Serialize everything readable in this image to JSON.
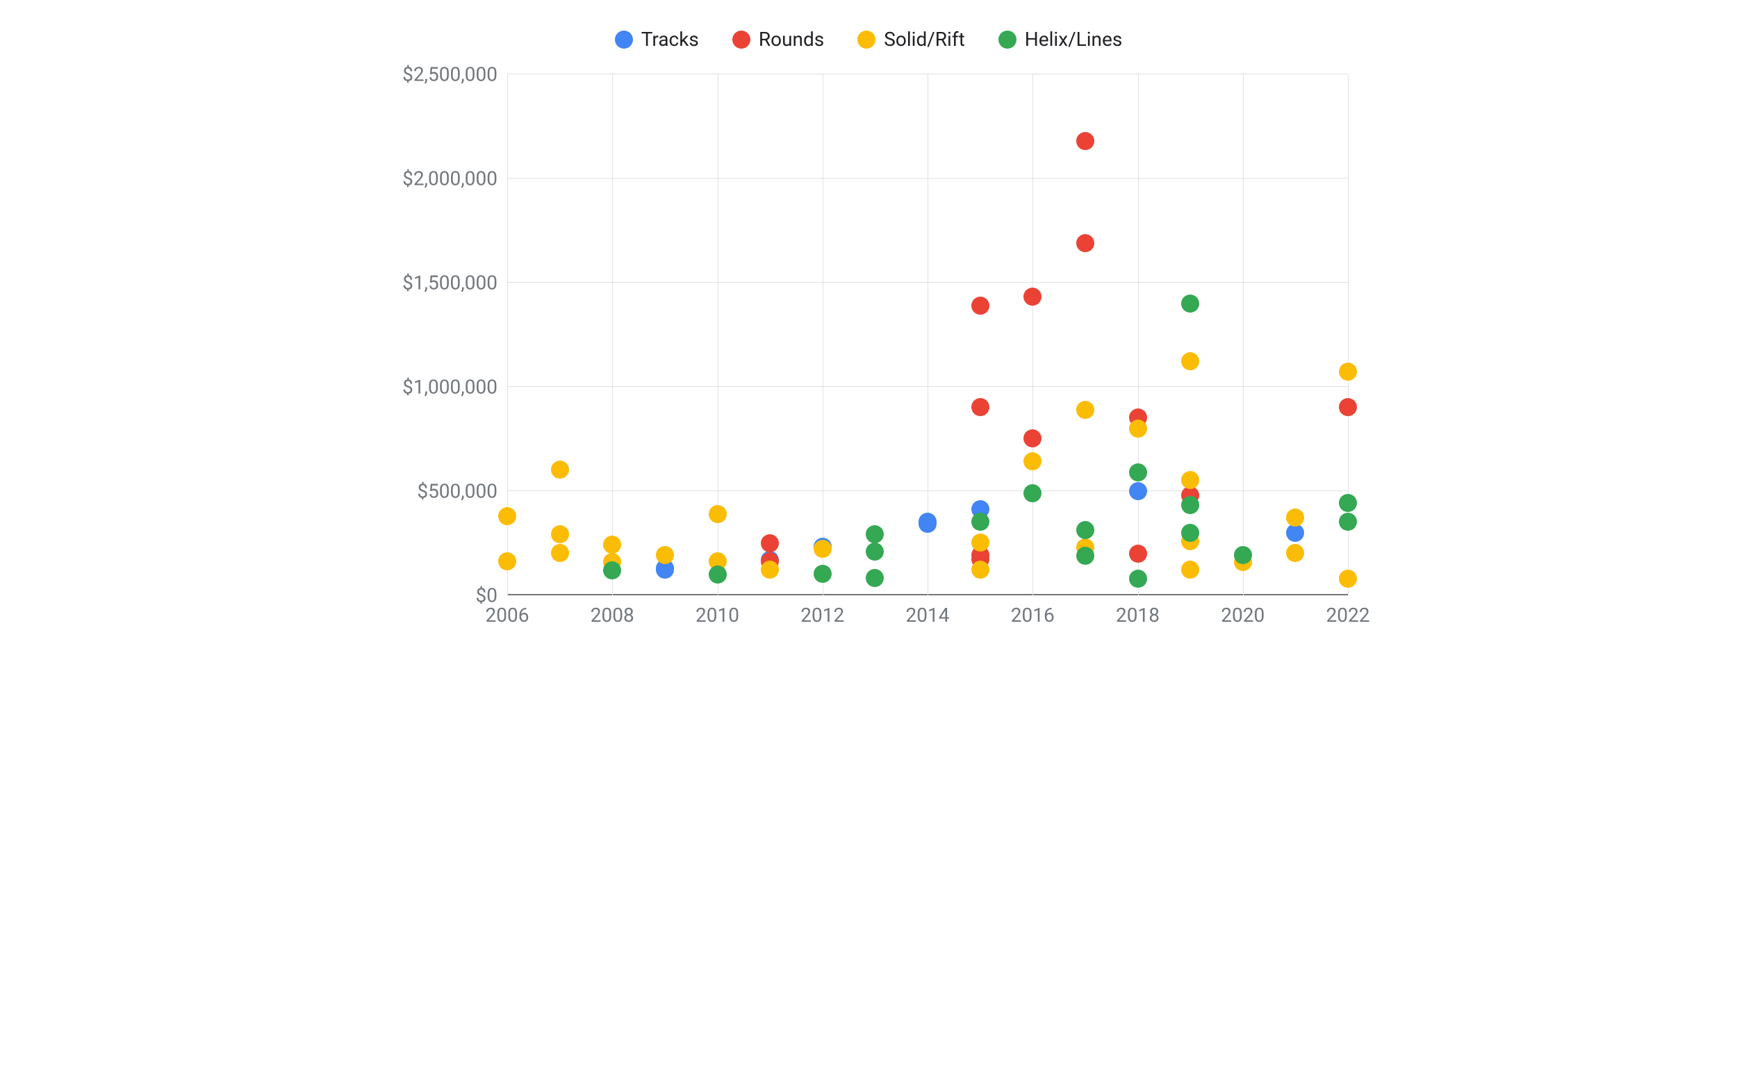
{
  "chart": {
    "type": "scatter",
    "background_color": "#ffffff",
    "grid_color": "#e0e0e0",
    "axis_color": "#757575",
    "label_color": "#72777c",
    "font_family": "-apple-system, Arial, sans-serif",
    "legend_fontsize": 28,
    "tick_fontsize": 28,
    "marker_radius": 13,
    "xlim": [
      2006,
      2022
    ],
    "ylim": [
      0,
      2500000
    ],
    "xtick_step": 2,
    "xticks": [
      2006,
      2008,
      2010,
      2012,
      2014,
      2016,
      2018,
      2020,
      2022
    ],
    "yticks": [
      0,
      500000,
      1000000,
      1500000,
      2000000,
      2500000
    ],
    "ytick_labels": [
      "$0",
      "$500,000",
      "$1,000,000",
      "$1,500,000",
      "$2,000,000",
      "$2,500,000"
    ],
    "legend_position": "top-center",
    "series": [
      {
        "name": "Tracks",
        "color": "#4285f4",
        "points": [
          {
            "x": 2009,
            "y": 130000
          },
          {
            "x": 2009,
            "y": 125000
          },
          {
            "x": 2011,
            "y": 170000
          },
          {
            "x": 2012,
            "y": 235000
          },
          {
            "x": 2014,
            "y": 345000
          },
          {
            "x": 2014,
            "y": 355000
          },
          {
            "x": 2015,
            "y": 415000
          },
          {
            "x": 2018,
            "y": 500000
          },
          {
            "x": 2021,
            "y": 300000
          }
        ]
      },
      {
        "name": "Rounds",
        "color": "#ea4335",
        "points": [
          {
            "x": 2011,
            "y": 250000
          },
          {
            "x": 2011,
            "y": 165000
          },
          {
            "x": 2015,
            "y": 1390000
          },
          {
            "x": 2015,
            "y": 905000
          },
          {
            "x": 2015,
            "y": 195000
          },
          {
            "x": 2015,
            "y": 175000
          },
          {
            "x": 2016,
            "y": 1435000
          },
          {
            "x": 2016,
            "y": 755000
          },
          {
            "x": 2017,
            "y": 2180000
          },
          {
            "x": 2017,
            "y": 1690000
          },
          {
            "x": 2018,
            "y": 855000
          },
          {
            "x": 2018,
            "y": 200000
          },
          {
            "x": 2019,
            "y": 480000
          },
          {
            "x": 2022,
            "y": 905000
          }
        ]
      },
      {
        "name": "Solid/Rift",
        "color": "#fbbc05",
        "points": [
          {
            "x": 2006,
            "y": 380000
          },
          {
            "x": 2006,
            "y": 165000
          },
          {
            "x": 2007,
            "y": 605000
          },
          {
            "x": 2007,
            "y": 295000
          },
          {
            "x": 2007,
            "y": 205000
          },
          {
            "x": 2008,
            "y": 245000
          },
          {
            "x": 2008,
            "y": 160000
          },
          {
            "x": 2009,
            "y": 195000
          },
          {
            "x": 2010,
            "y": 390000
          },
          {
            "x": 2010,
            "y": 165000
          },
          {
            "x": 2011,
            "y": 125000
          },
          {
            "x": 2012,
            "y": 225000
          },
          {
            "x": 2015,
            "y": 255000
          },
          {
            "x": 2015,
            "y": 125000
          },
          {
            "x": 2016,
            "y": 645000
          },
          {
            "x": 2017,
            "y": 890000
          },
          {
            "x": 2017,
            "y": 230000
          },
          {
            "x": 2018,
            "y": 800000
          },
          {
            "x": 2019,
            "y": 1125000
          },
          {
            "x": 2019,
            "y": 555000
          },
          {
            "x": 2019,
            "y": 260000
          },
          {
            "x": 2019,
            "y": 125000
          },
          {
            "x": 2020,
            "y": 160000
          },
          {
            "x": 2021,
            "y": 375000
          },
          {
            "x": 2021,
            "y": 205000
          },
          {
            "x": 2022,
            "y": 1075000
          },
          {
            "x": 2022,
            "y": 80000
          }
        ]
      },
      {
        "name": "Helix/Lines",
        "color": "#34a853",
        "points": [
          {
            "x": 2008,
            "y": 120000
          },
          {
            "x": 2010,
            "y": 100000
          },
          {
            "x": 2012,
            "y": 105000
          },
          {
            "x": 2013,
            "y": 295000
          },
          {
            "x": 2013,
            "y": 210000
          },
          {
            "x": 2013,
            "y": 85000
          },
          {
            "x": 2015,
            "y": 355000
          },
          {
            "x": 2016,
            "y": 490000
          },
          {
            "x": 2017,
            "y": 315000
          },
          {
            "x": 2017,
            "y": 190000
          },
          {
            "x": 2018,
            "y": 590000
          },
          {
            "x": 2018,
            "y": 80000
          },
          {
            "x": 2019,
            "y": 1400000
          },
          {
            "x": 2019,
            "y": 435000
          },
          {
            "x": 2019,
            "y": 300000
          },
          {
            "x": 2020,
            "y": 195000
          },
          {
            "x": 2022,
            "y": 445000
          },
          {
            "x": 2022,
            "y": 355000
          }
        ]
      }
    ]
  }
}
